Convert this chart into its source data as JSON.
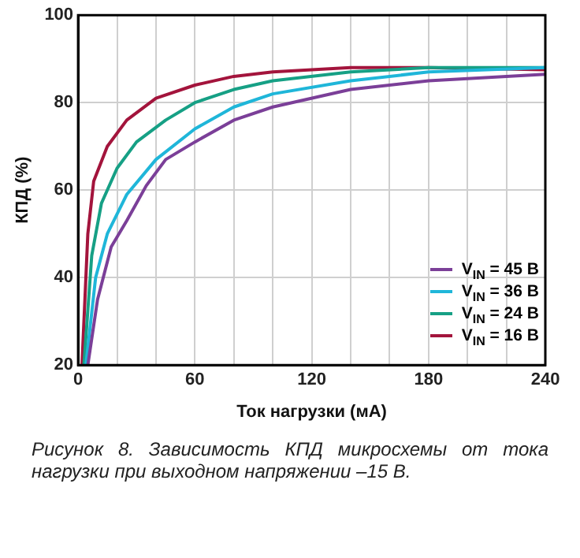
{
  "chart_data": {
    "type": "line",
    "xlabel": "Ток нагрузки (мА)",
    "ylabel": "КПД (%)",
    "xlim": [
      0,
      240
    ],
    "xticks": [
      0,
      {
        "value": 20,
        "label": null
      },
      {
        "value": 40,
        "label": null
      },
      60,
      {
        "value": 80,
        "label": null
      },
      {
        "value": 100,
        "label": null
      },
      120,
      {
        "value": 140,
        "label": null
      },
      {
        "value": 160,
        "label": null
      },
      180,
      {
        "value": 200,
        "label": null
      },
      {
        "value": 220,
        "label": null
      },
      240
    ],
    "ylim": [
      20,
      100
    ],
    "yticks": [
      20,
      40,
      60,
      80,
      100
    ],
    "grid": true,
    "legend": "bottom right",
    "marker": "none",
    "line_style": "solid",
    "series": [
      {
        "name": "V$_{IN}$ = 45 В",
        "color": "#7b3f98",
        "x": [
          5,
          10,
          17,
          25,
          35,
          45,
          60,
          80,
          100,
          140,
          180,
          240
        ],
        "values": [
          20,
          35,
          47,
          53,
          61,
          67,
          71,
          76,
          79,
          83,
          85,
          86.5
        ]
      },
      {
        "name": "V$_{IN}$ = 36 В",
        "color": "#1fb6d9",
        "x": [
          4,
          9,
          15,
          25,
          40,
          60,
          80,
          100,
          140,
          180,
          240
        ],
        "values": [
          20,
          40,
          50,
          59,
          67,
          74,
          79,
          82,
          85,
          87,
          88
        ]
      },
      {
        "name": "V$_{IN}$ = 24 В",
        "color": "#16a085",
        "x": [
          3,
          7,
          12,
          20,
          30,
          45,
          60,
          80,
          100,
          140,
          180,
          240
        ],
        "values": [
          20,
          45,
          57,
          65,
          71,
          76,
          80,
          83,
          85,
          87,
          88,
          88
        ]
      },
      {
        "name": "V$_{IN}$ = 16 В",
        "color": "#a3143c",
        "x": [
          2,
          5,
          8,
          15,
          25,
          40,
          60,
          80,
          100,
          140,
          180,
          240
        ],
        "values": [
          20,
          50,
          62,
          70,
          76,
          81,
          84,
          86,
          87,
          88,
          88,
          87.5
        ]
      }
    ],
    "annotations": [
      "Рисунок 8. Зависимость КПД микросхемы от тока нагрузки при выходном напряжении –15 В."
    ]
  }
}
